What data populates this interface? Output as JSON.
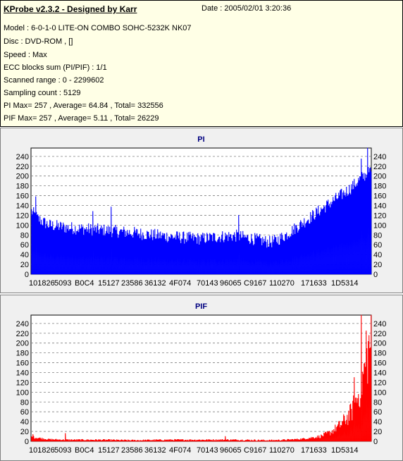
{
  "header": {
    "title": "KProbe v2.3.2 - Designed by Karr",
    "date": "Date : 2005/02/01 3:20:36",
    "lines": [
      "Model : 6-0-1-0 LITE-ON COMBO SOHC-5232K NK07",
      "Disc : DVD-ROM ,  []",
      "Speed : Max",
      "ECC blocks sum (PI/PIF) : 1/1",
      "Scanned range : 0 - 2299602",
      "Sampling count : 5129",
      "PI Max= 257 , Average= 64.84 , Total= 332556",
      "PIF Max= 257 , Average= 5.11 , Total= 26229"
    ]
  },
  "colors": {
    "header_bg": "#ffffe6",
    "panel_bg": "#f0f0f0",
    "pi_series": "#0000ff",
    "pif_series": "#ff0000",
    "title": "#000080"
  },
  "chart_data": [
    {
      "type": "bar",
      "title": "PI",
      "ylim": [
        0,
        257
      ],
      "yticks": [
        0,
        20,
        40,
        60,
        80,
        100,
        120,
        140,
        160,
        180,
        200,
        220,
        240
      ],
      "xtick_labels": [
        "101826",
        "5093",
        "B0C4",
        "15127",
        "23586",
        "36132",
        "4F074",
        "70143",
        "96065",
        "C9167",
        "110270",
        "171633",
        "1D5314"
      ],
      "grid": true,
      "profile": [
        {
          "x": 0.0,
          "y": 128
        },
        {
          "x": 0.02,
          "y": 112
        },
        {
          "x": 0.05,
          "y": 100
        },
        {
          "x": 0.1,
          "y": 95
        },
        {
          "x": 0.15,
          "y": 92
        },
        {
          "x": 0.2,
          "y": 90
        },
        {
          "x": 0.25,
          "y": 87
        },
        {
          "x": 0.3,
          "y": 84
        },
        {
          "x": 0.35,
          "y": 80
        },
        {
          "x": 0.4,
          "y": 77
        },
        {
          "x": 0.45,
          "y": 74
        },
        {
          "x": 0.5,
          "y": 72
        },
        {
          "x": 0.55,
          "y": 76
        },
        {
          "x": 0.6,
          "y": 78
        },
        {
          "x": 0.65,
          "y": 72
        },
        {
          "x": 0.7,
          "y": 65
        },
        {
          "x": 0.72,
          "y": 68
        },
        {
          "x": 0.75,
          "y": 80
        },
        {
          "x": 0.78,
          "y": 95
        },
        {
          "x": 0.82,
          "y": 115
        },
        {
          "x": 0.86,
          "y": 135
        },
        {
          "x": 0.9,
          "y": 155
        },
        {
          "x": 0.94,
          "y": 175
        },
        {
          "x": 0.97,
          "y": 195
        },
        {
          "x": 1.0,
          "y": 210
        }
      ],
      "spikes": [
        {
          "x": 0.012,
          "y": 158
        },
        {
          "x": 0.18,
          "y": 128
        },
        {
          "x": 0.235,
          "y": 137
        },
        {
          "x": 0.61,
          "y": 120
        },
        {
          "x": 0.97,
          "y": 235
        },
        {
          "x": 0.99,
          "y": 257
        }
      ]
    },
    {
      "type": "bar",
      "title": "PIF",
      "ylim": [
        0,
        257
      ],
      "yticks": [
        0,
        20,
        40,
        60,
        80,
        100,
        120,
        140,
        160,
        180,
        200,
        220,
        240
      ],
      "xtick_labels": [
        "101826",
        "5093",
        "B0C4",
        "15127",
        "23586",
        "36132",
        "4F074",
        "70143",
        "96065",
        "C9167",
        "110270",
        "171633",
        "1D5314"
      ],
      "grid": true,
      "profile": [
        {
          "x": 0.0,
          "y": 7
        },
        {
          "x": 0.05,
          "y": 3
        },
        {
          "x": 0.1,
          "y": 2
        },
        {
          "x": 0.2,
          "y": 2
        },
        {
          "x": 0.3,
          "y": 1
        },
        {
          "x": 0.4,
          "y": 2
        },
        {
          "x": 0.5,
          "y": 2
        },
        {
          "x": 0.6,
          "y": 2
        },
        {
          "x": 0.7,
          "y": 1
        },
        {
          "x": 0.75,
          "y": 2
        },
        {
          "x": 0.8,
          "y": 4
        },
        {
          "x": 0.85,
          "y": 8
        },
        {
          "x": 0.88,
          "y": 15
        },
        {
          "x": 0.91,
          "y": 28
        },
        {
          "x": 0.94,
          "y": 48
        },
        {
          "x": 0.96,
          "y": 75
        },
        {
          "x": 0.98,
          "y": 120
        },
        {
          "x": 1.0,
          "y": 180
        }
      ],
      "spikes": [
        {
          "x": 0.005,
          "y": 14
        },
        {
          "x": 0.1,
          "y": 16
        },
        {
          "x": 0.57,
          "y": 10
        },
        {
          "x": 0.95,
          "y": 130
        },
        {
          "x": 0.97,
          "y": 257
        },
        {
          "x": 0.985,
          "y": 225
        }
      ]
    }
  ]
}
